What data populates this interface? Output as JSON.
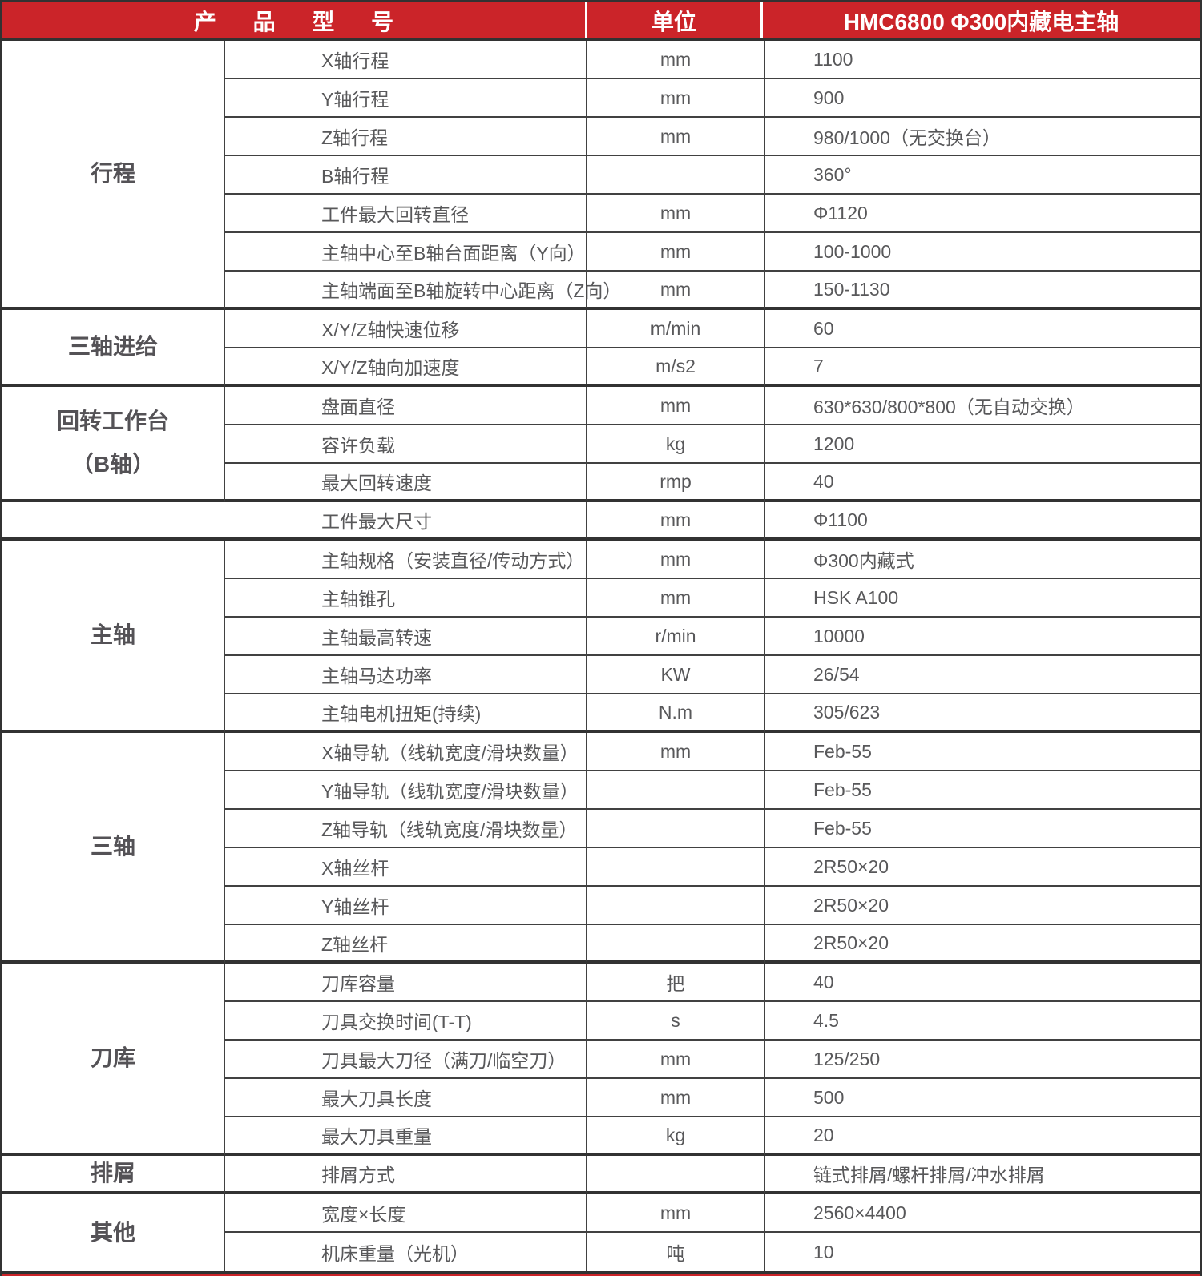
{
  "header": {
    "product_model_label": "产 品 型 号",
    "unit_label": "单位",
    "model_value": "HMC6800 Φ300内藏电主轴"
  },
  "colors": {
    "header_bg": "#CB2429",
    "header_text": "#FFFFFF",
    "outer_border": "#323232",
    "row_line": "#414141",
    "body_text": "#58585A"
  },
  "sections": [
    {
      "name": "travel",
      "group_lines": [
        "行程"
      ],
      "rows": [
        {
          "param": "X轴行程",
          "unit": "mm",
          "value": "1100"
        },
        {
          "param": "Y轴行程",
          "unit": "mm",
          "value": "900"
        },
        {
          "param": "Z轴行程",
          "unit": "mm",
          "value": "980/1000（无交换台）"
        },
        {
          "param": "B轴行程",
          "unit": "",
          "value": "360°"
        },
        {
          "param": "工件最大回转直径",
          "unit": "mm",
          "value": "Φ1120"
        },
        {
          "param": "主轴中心至B轴台面距离（Y向）",
          "unit": "mm",
          "value": "100-1000"
        },
        {
          "param": "主轴端面至B轴旋转中心距离（Z向）",
          "unit": "mm",
          "value": "150-1130"
        }
      ]
    },
    {
      "name": "three-axis-feed",
      "group_lines": [
        "三轴进给"
      ],
      "rows": [
        {
          "param": "X/Y/Z轴快速位移",
          "unit": "m/min",
          "value": "60"
        },
        {
          "param": "X/Y/Z轴向加速度",
          "unit": "m/s2",
          "value": "7"
        }
      ]
    },
    {
      "name": "rotary-table-b-axis",
      "group_lines": [
        "回转工作台",
        "（B轴）"
      ],
      "rows": [
        {
          "param": "盘面直径",
          "unit": "mm",
          "value": "630*630/800*800（无自动交换）"
        },
        {
          "param": "容许负载",
          "unit": "kg",
          "value": "1200"
        },
        {
          "param": "最大回转速度",
          "unit": "rmp",
          "value": "40"
        }
      ]
    },
    {
      "name": "max-workpiece",
      "rows": [
        {
          "param": "工件最大尺寸",
          "unit": "mm",
          "value": "Φ1100"
        }
      ]
    },
    {
      "name": "spindle",
      "group_lines": [
        "主轴"
      ],
      "rows": [
        {
          "param": "主轴规格（安装直径/传动方式）",
          "unit": "mm",
          "value": "Φ300内藏式"
        },
        {
          "param": "主轴锥孔",
          "unit": "mm",
          "value": "HSK A100"
        },
        {
          "param": "主轴最高转速",
          "unit": "r/min",
          "value": "10000"
        },
        {
          "param": "主轴马达功率",
          "unit": "KW",
          "value": "26/54"
        },
        {
          "param": "主轴电机扭矩(持续)",
          "unit": "N.m",
          "value": "305/623"
        }
      ]
    },
    {
      "name": "three-axis",
      "group_lines": [
        "三轴"
      ],
      "rows": [
        {
          "param": "X轴导轨（线轨宽度/滑块数量）",
          "unit": "mm",
          "value": "Feb-55"
        },
        {
          "param": "Y轴导轨（线轨宽度/滑块数量）",
          "unit": "",
          "value": "Feb-55"
        },
        {
          "param": "Z轴导轨（线轨宽度/滑块数量）",
          "unit": "",
          "value": "Feb-55"
        },
        {
          "param": "X轴丝杆",
          "unit": "",
          "value": "2R50×20"
        },
        {
          "param": "Y轴丝杆",
          "unit": "",
          "value": "2R50×20"
        },
        {
          "param": "Z轴丝杆",
          "unit": "",
          "value": "2R50×20"
        }
      ]
    },
    {
      "name": "tool-magazine",
      "group_lines": [
        "刀库"
      ],
      "rows": [
        {
          "param": "刀库容量",
          "unit": "把",
          "value": "40"
        },
        {
          "param": "刀具交换时间(T-T)",
          "unit": "s",
          "value": "4.5"
        },
        {
          "param": "刀具最大刀径（满刀/临空刀）",
          "unit": "mm",
          "value": "125/250"
        },
        {
          "param": "最大刀具长度",
          "unit": "mm",
          "value": "500"
        },
        {
          "param": "最大刀具重量",
          "unit": "kg",
          "value": "20"
        }
      ]
    },
    {
      "name": "chip-removal",
      "group_lines": [
        "排屑"
      ],
      "rows": [
        {
          "param": "排屑方式",
          "unit": "",
          "value": "链式排屑/螺杆排屑/冲水排屑"
        }
      ]
    },
    {
      "name": "other",
      "group_lines": [
        "其他"
      ],
      "rows": [
        {
          "param": "宽度×长度",
          "unit": "mm",
          "value": "2560×4400"
        },
        {
          "param": "机床重量（光机）",
          "unit": "吨",
          "value": "10"
        }
      ]
    }
  ]
}
